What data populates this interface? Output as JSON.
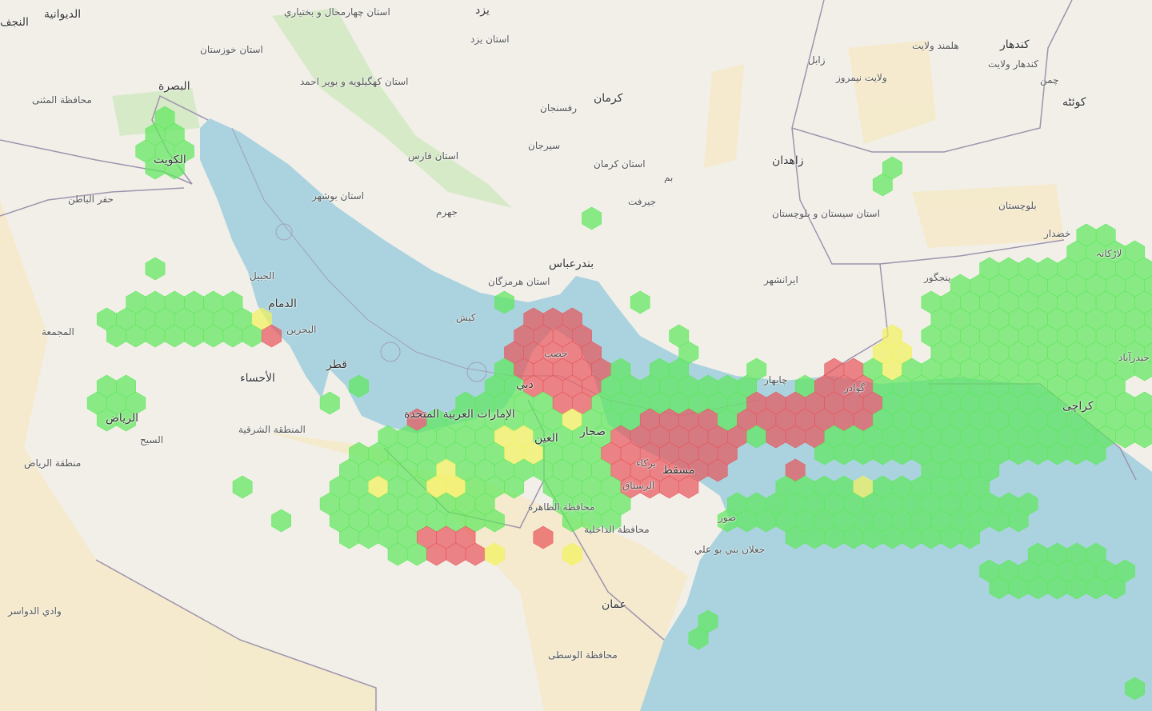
{
  "map": {
    "colors": {
      "land": "#f2efe9",
      "sea": "#aad3df",
      "border": "#9e94ad",
      "desert": "#f5e9c6",
      "hex_low": "#5de85a",
      "hex_mid": "#f2f25a",
      "hex_high": "#e8545a"
    },
    "hex_levels": [
      "low",
      "mid",
      "high"
    ],
    "labels": {
      "najaf": "النجف",
      "diwaniyah": "الديوانية",
      "basra": "البصرة",
      "muthanna": "محافظة المثنى",
      "kuwait": "الكويت",
      "hafar": "حفر الباطن",
      "jubail": "الجبيل",
      "dammam": "الدمام",
      "bahrain": "البحرين",
      "qatar": "قطر",
      "ahsa": "الأحساء",
      "majmaah": "المجمعة",
      "riyadh": "الرياض",
      "sharqiya": "المنطقة الشرقية",
      "riyadh_region": "منطقة الرياض",
      "sulayyil": "السيح",
      "wadi": "وادي الدواسر",
      "uae": "الإمارات العربية المتحدة",
      "dubai": "دبي",
      "ain": "العين",
      "sohar": "صحار",
      "muscat": "مسقط",
      "dhahira": "محافظة الظاهرة",
      "dakhiliya": "محافظة الداخلية",
      "sur": "صور",
      "jalan": "جعلان بني بو علي",
      "oman": "عمان",
      "wusta": "محافظة الوسطى",
      "yazd": "يزد",
      "yazd_prov": "استان يزد",
      "kerman": "كرمان",
      "kerman_prov": "استان كرمان",
      "rafsanjan": "رفسنجان",
      "sirjan": "سيرجان",
      "bam": "بم",
      "jiroft": "جيرفت",
      "fars": "استان فارس",
      "bushehr": "استان بوشهر",
      "jahrom": "جهرم",
      "kohgiluyeh": "استان كهگيلويه و بوير احمد",
      "khuzestan": "استان خوزستان",
      "chaharmahal": "استان چهارمحال و بختياري",
      "bandarabbas": "بندرعباس",
      "hormozgan": "استان هرمزگان",
      "kish": "كيش",
      "zahedan": "زاهدان",
      "sistan": "استان سيستان و بلوچستان",
      "iranshahr": "ايرانشهر",
      "chabahar": "چابهار",
      "zabol": "زابل",
      "nimroz": "ولایت نیمروز",
      "helmand": "هلمند ولايت",
      "kandahar": "كندهار",
      "kandahar_prov": "كندهار ولايت",
      "quetta": "كوئٹه",
      "chaman": "چمن",
      "baluchistan": "بلوچستان",
      "khuzdar": "خضدار",
      "larkana": "لاڑكانہ",
      "panjgur": "پنجگور",
      "gwadar": "گوادر",
      "karachi": "كراچی",
      "hyderabad": "حیدرآباد",
      "khasab": "خصب",
      "barka": "بركاء",
      "rustaq": "الرستاق",
      "nizwa": "بركاء"
    }
  }
}
